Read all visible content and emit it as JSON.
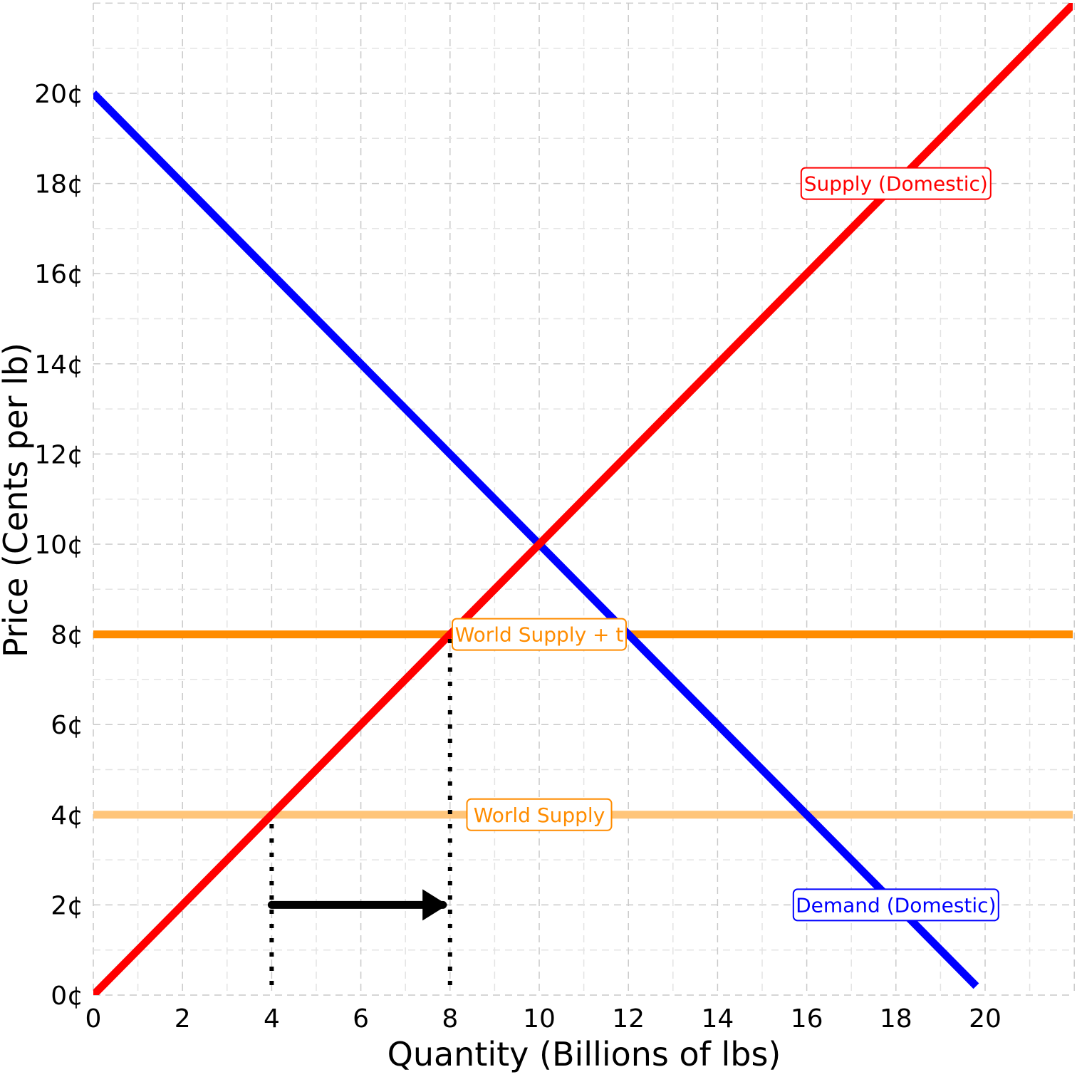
{
  "chart_data": {
    "type": "line",
    "title": "",
    "xlabel": "Quantity (Billions of lbs)",
    "ylabel": "Price (Cents per lb)",
    "xlim": [
      0,
      22
    ],
    "ylim": [
      0,
      22
    ],
    "grid": true,
    "x_ticks": [
      {
        "value": 0,
        "label": "0"
      },
      {
        "value": 2,
        "label": "2"
      },
      {
        "value": 4,
        "label": "4"
      },
      {
        "value": 6,
        "label": "6"
      },
      {
        "value": 8,
        "label": "8"
      },
      {
        "value": 10,
        "label": "10"
      },
      {
        "value": 12,
        "label": "12"
      },
      {
        "value": 14,
        "label": "14"
      },
      {
        "value": 16,
        "label": "16"
      },
      {
        "value": 18,
        "label": "18"
      },
      {
        "value": 20,
        "label": "20"
      }
    ],
    "y_ticks": [
      {
        "value": 0,
        "label": "0¢"
      },
      {
        "value": 2,
        "label": "2¢"
      },
      {
        "value": 4,
        "label": "4¢"
      },
      {
        "value": 6,
        "label": "6¢"
      },
      {
        "value": 8,
        "label": "8¢"
      },
      {
        "value": 10,
        "label": "10¢"
      },
      {
        "value": 12,
        "label": "12¢"
      },
      {
        "value": 14,
        "label": "14¢"
      },
      {
        "value": 16,
        "label": "16¢"
      },
      {
        "value": 18,
        "label": "18¢"
      },
      {
        "value": 20,
        "label": "20¢"
      }
    ],
    "series": [
      {
        "name": "Supply (Domestic)",
        "color": "#ff0000",
        "points": [
          [
            0,
            0
          ],
          [
            22,
            22
          ]
        ],
        "label_at": [
          18,
          18
        ]
      },
      {
        "name": "Demand (Domestic)",
        "color": "#0000ff",
        "points": [
          [
            0,
            20
          ],
          [
            19.8,
            0.2
          ]
        ],
        "label_at": [
          18,
          2
        ]
      },
      {
        "name": "World Supply + t",
        "color": "#ff8c00",
        "points": [
          [
            0,
            8
          ],
          [
            22,
            8
          ]
        ],
        "label_at": [
          10,
          8
        ]
      },
      {
        "name": "World Supply",
        "color": "#ffc57a",
        "label_color": "#ff8c00",
        "points": [
          [
            0,
            4
          ],
          [
            22,
            4
          ]
        ],
        "label_at": [
          10,
          4
        ]
      }
    ],
    "reference_lines": [
      {
        "x": 4,
        "y_from": 0,
        "y_to": 4,
        "style": "dotted",
        "color": "#000000"
      },
      {
        "x": 8,
        "y_from": 0,
        "y_to": 8,
        "style": "dotted",
        "color": "#000000"
      }
    ],
    "arrows": [
      {
        "from": [
          4,
          2
        ],
        "to": [
          8,
          2
        ],
        "color": "#000000"
      }
    ]
  }
}
